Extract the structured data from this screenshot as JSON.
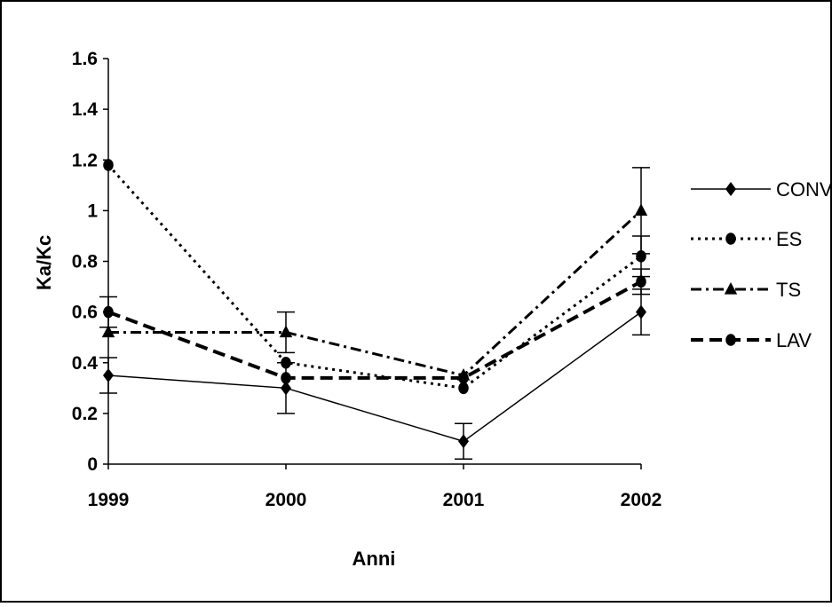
{
  "chart_data": {
    "type": "line",
    "title": "",
    "xlabel": "Anni",
    "ylabel": "Ka/Kc",
    "categories": [
      "1999",
      "2000",
      "2001",
      "2002"
    ],
    "ylim": [
      0,
      1.6
    ],
    "yticks": [
      0,
      0.2,
      0.4,
      0.6,
      0.8,
      1,
      1.2,
      1.4,
      1.6
    ],
    "ytick_labels": [
      "0",
      "0.2",
      "0.4",
      "0.6",
      "0.8",
      "1",
      "1.2",
      "1.4",
      "1.6"
    ],
    "grid": false,
    "legend_position": "right",
    "series": [
      {
        "name": "CONV",
        "marker": "diamond",
        "line_style": "solid",
        "color": "#000000",
        "values": [
          0.35,
          0.3,
          0.09,
          0.6
        ],
        "error": [
          0.07,
          0.1,
          0.07,
          0.09
        ]
      },
      {
        "name": "ES",
        "marker": "circle",
        "line_style": "dotted",
        "color": "#000000",
        "values": [
          1.18,
          0.4,
          0.3,
          0.82
        ],
        "error": [
          0.0,
          0.0,
          0.0,
          0.08
        ]
      },
      {
        "name": "TS",
        "marker": "triangle",
        "line_style": "dash-dot",
        "color": "#000000",
        "values": [
          0.52,
          0.52,
          0.35,
          1.0
        ],
        "error": [
          0.0,
          0.08,
          0.0,
          0.17
        ]
      },
      {
        "name": "LAV",
        "marker": "circle",
        "line_style": "thick-dashed",
        "color": "#000000",
        "values": [
          0.6,
          0.34,
          0.34,
          0.72
        ],
        "error": [
          0.06,
          0.0,
          0.0,
          0.05
        ]
      }
    ]
  }
}
